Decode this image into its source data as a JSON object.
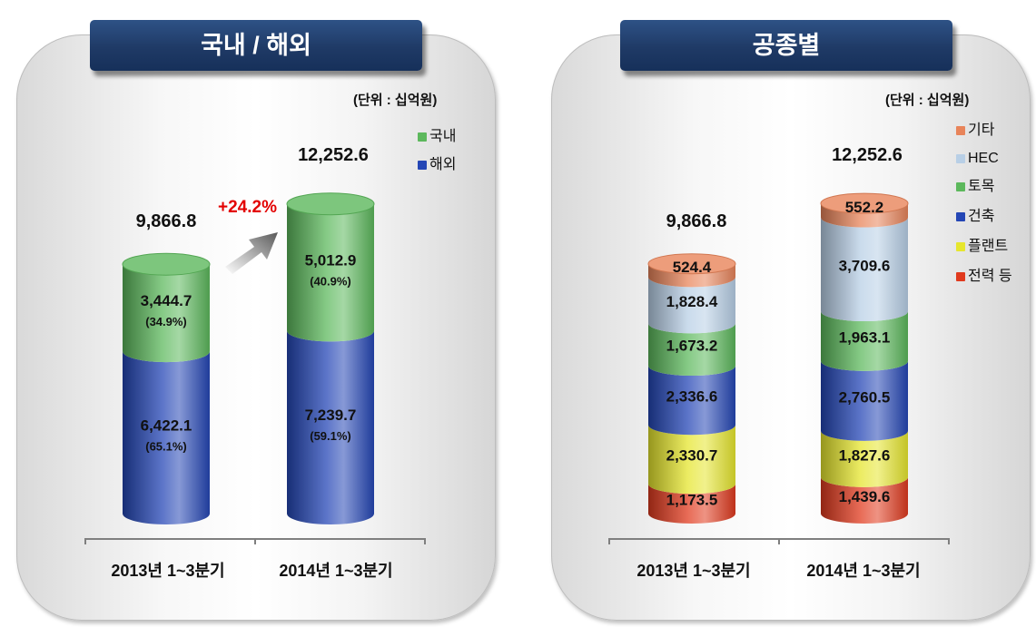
{
  "left": {
    "title": "국내 / 해외",
    "unit": "(단위 : 십억원)",
    "legend": [
      {
        "label": "국내",
        "color": "#5cb85c"
      },
      {
        "label": "해외",
        "color": "#2446b5"
      }
    ],
    "growth": "+24.2%",
    "categories": [
      "2013년 1~3분기",
      "2014년 1~3분기"
    ],
    "totals": [
      "9,866.8",
      "12,252.6"
    ]
  },
  "right": {
    "title": "공종별",
    "unit": "(단위 : 십억원)",
    "legend": [
      {
        "label": "기타",
        "color": "#e8845a"
      },
      {
        "label": "HEC",
        "color": "#b8cfe6"
      },
      {
        "label": "토목",
        "color": "#5cb85c"
      },
      {
        "label": "건축",
        "color": "#2446b5"
      },
      {
        "label": "플랜트",
        "color": "#e6e62e"
      },
      {
        "label": "전력 등",
        "color": "#e03a1e"
      }
    ],
    "categories": [
      "2013년 1~3분기",
      "2014년 1~3분기"
    ],
    "totals": [
      "9,866.8",
      "12,252.6"
    ]
  },
  "chart_data": [
    {
      "type": "bar",
      "stacked": true,
      "title": "국내 / 해외",
      "unit": "(단위 : 십억원)",
      "categories": [
        "2013년 1~3분기",
        "2014년 1~3분기"
      ],
      "totals": [
        9866.8,
        12252.6
      ],
      "series": [
        {
          "name": "해외",
          "values": [
            6422.1,
            7239.7
          ],
          "labels": [
            "6,422.1",
            "7,239.7"
          ],
          "pct": [
            "(65.1%)",
            "(59.1%)"
          ],
          "color": "#2446b5"
        },
        {
          "name": "국내",
          "values": [
            3444.7,
            5012.9
          ],
          "labels": [
            "3,444.7",
            "5,012.9"
          ],
          "pct": [
            "(34.9%)",
            "(40.9%)"
          ],
          "color": "#5cb85c"
        }
      ],
      "annotation": "+24.2%"
    },
    {
      "type": "bar",
      "stacked": true,
      "title": "공종별",
      "unit": "(단위 : 십억원)",
      "categories": [
        "2013년 1~3분기",
        "2014년 1~3분기"
      ],
      "totals": [
        9866.8,
        12252.6
      ],
      "series": [
        {
          "name": "전력 등",
          "values": [
            1173.5,
            1439.6
          ],
          "labels": [
            "1,173.5",
            "1,439.6"
          ],
          "color": "#e03a1e"
        },
        {
          "name": "플랜트",
          "values": [
            2330.7,
            1827.6
          ],
          "labels": [
            "2,330.7",
            "1,827.6"
          ],
          "color": "#e6e62e"
        },
        {
          "name": "건축",
          "values": [
            2336.6,
            2760.5
          ],
          "labels": [
            "2,336.6",
            "2,760.5"
          ],
          "color": "#2446b5"
        },
        {
          "name": "토목",
          "values": [
            1673.2,
            1963.1
          ],
          "labels": [
            "1,673.2",
            "1,963.1"
          ],
          "color": "#5cb85c"
        },
        {
          "name": "HEC",
          "values": [
            1828.4,
            3709.6
          ],
          "labels": [
            "1,828.4",
            "3,709.6"
          ],
          "color": "#b8cfe6"
        },
        {
          "name": "기타",
          "values": [
            524.4,
            552.2
          ],
          "labels": [
            "524.4",
            "552.2"
          ],
          "color": "#e8845a"
        }
      ]
    }
  ]
}
